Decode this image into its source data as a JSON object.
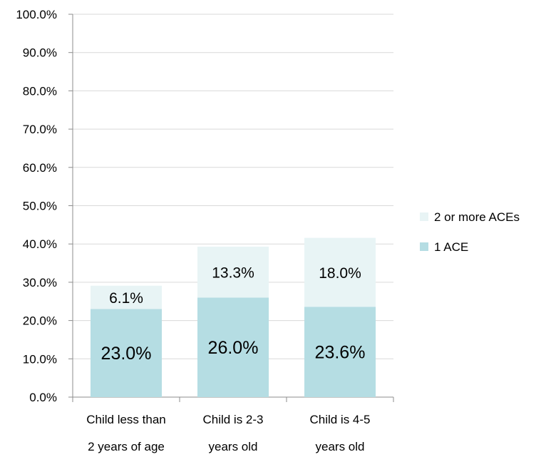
{
  "chart_data": {
    "type": "bar",
    "stacked": true,
    "categories": [
      [
        "Child less than",
        "2 years of age"
      ],
      [
        "Child is 2-3",
        "years old"
      ],
      [
        "Child is 4-5",
        "years old"
      ]
    ],
    "series": [
      {
        "name": "1 ACE",
        "values": [
          23.0,
          26.0,
          23.6
        ],
        "labels": [
          "23.0%",
          "26.0%",
          "23.6%"
        ],
        "color": "#b5dde3"
      },
      {
        "name": "2 or more ACEs",
        "values": [
          6.1,
          13.3,
          18.0
        ],
        "labels": [
          "6.1%",
          "13.3%",
          "18.0%"
        ],
        "color": "#e8f4f5"
      }
    ],
    "ylim": [
      0,
      100
    ],
    "yticks": [
      "0.0%",
      "10.0%",
      "20.0%",
      "30.0%",
      "40.0%",
      "50.0%",
      "60.0%",
      "70.0%",
      "80.0%",
      "90.0%",
      "100.0%"
    ],
    "grid": true,
    "legend_position": "right",
    "legend_order": [
      "2 or more ACEs",
      "1 ACE"
    ],
    "title": "",
    "xlabel": "",
    "ylabel": ""
  }
}
